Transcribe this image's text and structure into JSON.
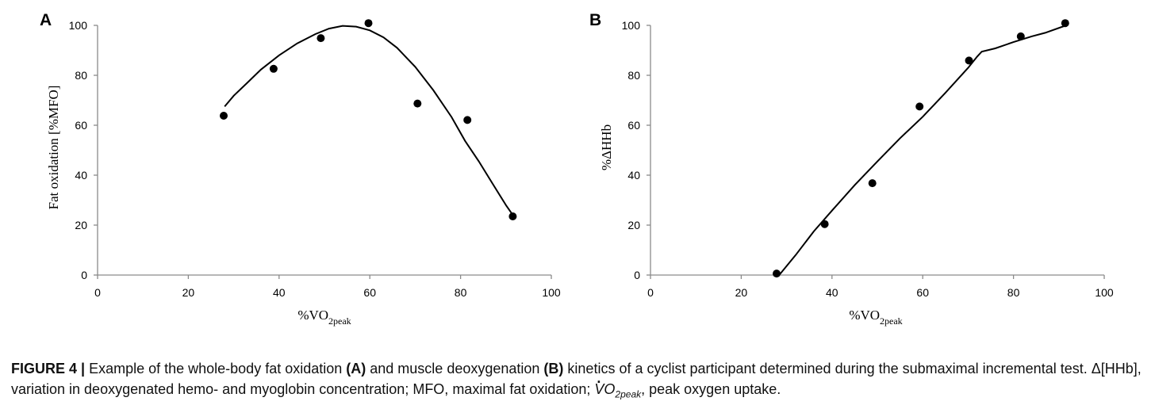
{
  "chart_data": [
    {
      "type": "scatter",
      "panel": "A",
      "xlabel": "%VO2peak",
      "xlabel_main": "%VO",
      "xlabel_sub": "2peak",
      "ylabel": "Fat oxidation [%MFO]",
      "xlim": [
        0,
        100
      ],
      "ylim": [
        0,
        100
      ],
      "xticks": [
        "0",
        "20",
        "40",
        "60",
        "80",
        "100"
      ],
      "yticks": [
        "0",
        "20",
        "40",
        "60",
        "80",
        "100"
      ],
      "grid": false,
      "series": [
        {
          "kind": "points",
          "x": [
            27.8,
            38.8,
            49.2,
            59.7,
            70.5,
            81.5,
            91.5
          ],
          "y": [
            63.8,
            82.6,
            94.9,
            100.9,
            68.7,
            62.1,
            23.5
          ]
        },
        {
          "kind": "fit-curve",
          "x": [
            28,
            30,
            33,
            36,
            40,
            44,
            48,
            51,
            54,
            57,
            60,
            63,
            66,
            70,
            74,
            78,
            81,
            84,
            87,
            90,
            92
          ],
          "y": [
            67.5,
            71.8,
            77.0,
            82.3,
            88.0,
            92.8,
            96.5,
            98.7,
            99.8,
            99.5,
            98.0,
            95.2,
            91.0,
            83.4,
            74.0,
            63.3,
            53.7,
            45.6,
            36.8,
            28.0,
            22.8
          ]
        }
      ]
    },
    {
      "type": "scatter",
      "panel": "B",
      "xlabel": "%VO2peak",
      "xlabel_main": "%VO",
      "xlabel_sub": "2peak",
      "ylabel": "%ΔHHb",
      "xlim": [
        0,
        100
      ],
      "ylim": [
        0,
        100
      ],
      "xticks": [
        "0",
        "20",
        "40",
        "60",
        "80",
        "100"
      ],
      "yticks": [
        "0",
        "20",
        "40",
        "60",
        "80",
        "100"
      ],
      "grid": false,
      "series": [
        {
          "kind": "points",
          "x": [
            27.8,
            38.4,
            48.9,
            59.3,
            70.2,
            81.6,
            91.4
          ],
          "y": [
            0.6,
            20.4,
            36.8,
            67.5,
            85.9,
            95.6,
            100.9
          ]
        },
        {
          "kind": "fit-curve",
          "x": [
            28.5,
            32,
            36,
            40,
            45,
            50,
            55,
            60,
            65,
            70,
            72,
            73,
            76,
            80,
            84,
            87,
            91.6
          ],
          "y": [
            0.3,
            8.0,
            17.5,
            25.8,
            36.0,
            45.5,
            54.8,
            63.4,
            73.0,
            83.0,
            87.5,
            89.5,
            90.8,
            93.3,
            95.6,
            97.0,
            100.0
          ]
        }
      ]
    }
  ],
  "caption": {
    "label": "FIGURE 4 |",
    "part1": " Example of the whole-body fat oxidation ",
    "bold_a": "(A)",
    "part2": " and muscle deoxygenation ",
    "bold_b": "(B)",
    "part3": " kinetics of a cyclist participant determined during the submaximal incremental test. Δ[HHb], variation in deoxygenated hemo- and myoglobin concentration; MFO, maximal fat oxidation; ",
    "vo2_v": "V",
    "vo2_o": "O",
    "vo2_sub": "2peak",
    "part4": ", peak oxygen uptake."
  }
}
